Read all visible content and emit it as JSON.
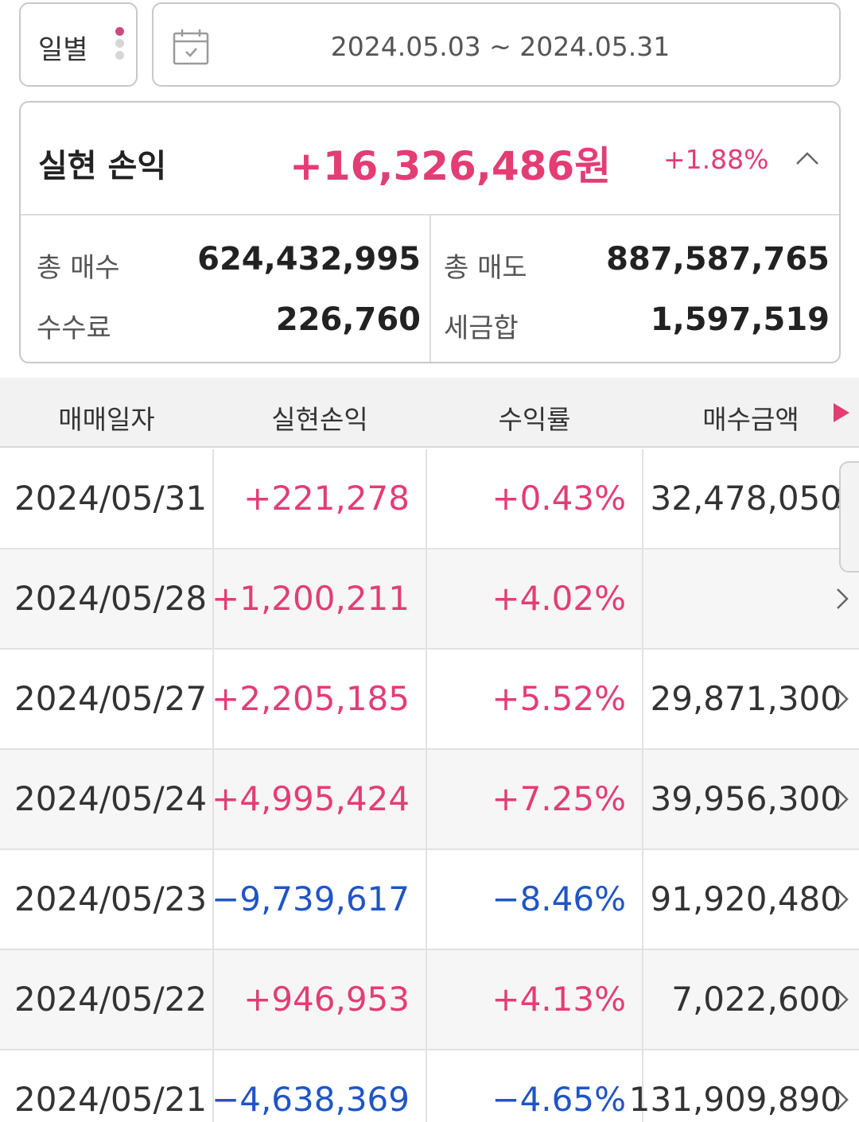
{
  "filter": {
    "period_label": "일별",
    "date_range": "2024.05.03 ~ 2024.05.31"
  },
  "summary": {
    "title": "실현 손익",
    "amount": "+16,326,486원",
    "rate": "+1.88%",
    "total_buy_label": "총 매수",
    "total_buy_value": "624,432,995",
    "total_sell_label": "총 매도",
    "total_sell_value": "887,587,765",
    "fee_label": "수수료",
    "fee_value": "226,760",
    "tax_label": "세금합",
    "tax_value": "1,597,519"
  },
  "table": {
    "headers": [
      "매매일자",
      "실현손익",
      "수익률",
      "매수금액"
    ],
    "rows": [
      {
        "date": "2024/05/31",
        "pnl": "+221,278",
        "rate": "+0.43%",
        "buy": "32,478,050",
        "sign": "pos"
      },
      {
        "date": "2024/05/28",
        "pnl": "+1,200,211",
        "rate": "+4.02%",
        "buy": "",
        "sign": "pos"
      },
      {
        "date": "2024/05/27",
        "pnl": "+2,205,185",
        "rate": "+5.52%",
        "buy": "29,871,300",
        "sign": "pos"
      },
      {
        "date": "2024/05/24",
        "pnl": "+4,995,424",
        "rate": "+7.25%",
        "buy": "39,956,300",
        "sign": "pos"
      },
      {
        "date": "2024/05/23",
        "pnl": "−9,739,617",
        "rate": "−8.46%",
        "buy": "91,920,480",
        "sign": "neg"
      },
      {
        "date": "2024/05/22",
        "pnl": "+946,953",
        "rate": "+4.13%",
        "buy": "7,022,600",
        "sign": "pos"
      },
      {
        "date": "2024/05/21",
        "pnl": "−4,638,369",
        "rate": "−4.65%",
        "buy": "131,909,890",
        "sign": "neg"
      }
    ]
  },
  "colors": {
    "positive": "#e33d74",
    "negative": "#1f55c6",
    "header_bg": "#f2f2f2"
  }
}
